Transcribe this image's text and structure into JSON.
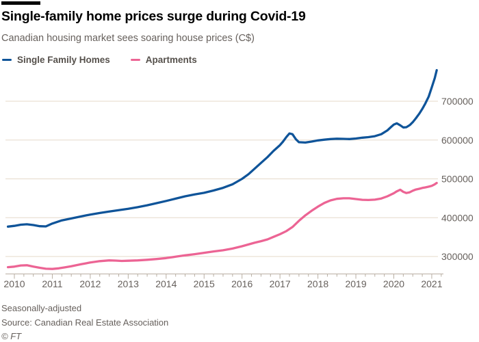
{
  "header": {
    "title": "Single-family home prices surge during Covid-19",
    "subtitle": "Canadian housing market sees soaring house prices (C$)"
  },
  "legend": {
    "items": [
      {
        "label": "Single Family Homes",
        "color": "#0f5499"
      },
      {
        "label": "Apartments",
        "color": "#ec6494"
      }
    ]
  },
  "footer": {
    "note": "Seasonally-adjusted",
    "source": "Source: Canadian Real Estate Association",
    "credit": "© FT"
  },
  "colors": {
    "gridline": "#e5d9ca",
    "axis": "#b8aea2",
    "tick_label": "#66605c"
  },
  "chart_data": {
    "type": "line",
    "title": "Single-family home prices surge during Covid-19",
    "subtitle": "Canadian housing market sees soaring house prices (C$)",
    "xlabel": "",
    "ylabel": "",
    "x_ticks": [
      2010,
      2011,
      2012,
      2013,
      2014,
      2015,
      2016,
      2017,
      2018,
      2019,
      2020,
      2021
    ],
    "y_ticks": [
      300000,
      400000,
      500000,
      600000,
      700000
    ],
    "xlim": [
      2009.77,
      2021.3
    ],
    "ylim": [
      256000,
      784000
    ],
    "grid": "horizontal",
    "y_axis_side": "right",
    "legend_position": "top-left",
    "minor_x_tick_interval": 0.25,
    "series": [
      {
        "name": "Single Family Homes",
        "color": "#0f5499",
        "points": [
          [
            2009.83,
            377000
          ],
          [
            2010.0,
            379000
          ],
          [
            2010.17,
            382000
          ],
          [
            2010.33,
            383000
          ],
          [
            2010.5,
            381000
          ],
          [
            2010.67,
            378000
          ],
          [
            2010.83,
            377500
          ],
          [
            2011.0,
            385000
          ],
          [
            2011.25,
            393000
          ],
          [
            2011.5,
            398000
          ],
          [
            2011.75,
            403000
          ],
          [
            2012.0,
            408000
          ],
          [
            2012.25,
            412000
          ],
          [
            2012.5,
            416000
          ],
          [
            2012.75,
            419500
          ],
          [
            2013.0,
            423000
          ],
          [
            2013.25,
            427000
          ],
          [
            2013.5,
            432000
          ],
          [
            2013.75,
            437500
          ],
          [
            2014.0,
            443000
          ],
          [
            2014.25,
            449000
          ],
          [
            2014.5,
            455000
          ],
          [
            2014.75,
            460000
          ],
          [
            2015.0,
            464000
          ],
          [
            2015.25,
            470000
          ],
          [
            2015.5,
            477000
          ],
          [
            2015.75,
            486000
          ],
          [
            2016.0,
            500000
          ],
          [
            2016.17,
            512000
          ],
          [
            2016.33,
            526000
          ],
          [
            2016.5,
            541000
          ],
          [
            2016.67,
            556000
          ],
          [
            2016.83,
            572000
          ],
          [
            2017.0,
            587000
          ],
          [
            2017.08,
            596000
          ],
          [
            2017.17,
            608000
          ],
          [
            2017.25,
            617000
          ],
          [
            2017.33,
            615000
          ],
          [
            2017.42,
            602000
          ],
          [
            2017.5,
            594500
          ],
          [
            2017.67,
            593500
          ],
          [
            2017.83,
            596000
          ],
          [
            2018.0,
            599000
          ],
          [
            2018.17,
            601000
          ],
          [
            2018.33,
            602500
          ],
          [
            2018.5,
            603500
          ],
          [
            2018.67,
            603000
          ],
          [
            2018.83,
            602500
          ],
          [
            2019.0,
            604000
          ],
          [
            2019.17,
            606000
          ],
          [
            2019.33,
            607500
          ],
          [
            2019.5,
            610000
          ],
          [
            2019.67,
            615000
          ],
          [
            2019.83,
            625000
          ],
          [
            2019.92,
            633000
          ],
          [
            2020.0,
            640000
          ],
          [
            2020.08,
            643000
          ],
          [
            2020.17,
            638000
          ],
          [
            2020.25,
            632500
          ],
          [
            2020.33,
            633000
          ],
          [
            2020.42,
            638500
          ],
          [
            2020.5,
            646000
          ],
          [
            2020.58,
            656000
          ],
          [
            2020.67,
            668000
          ],
          [
            2020.75,
            680000
          ],
          [
            2020.83,
            694000
          ],
          [
            2020.92,
            712000
          ],
          [
            2021.0,
            736000
          ],
          [
            2021.08,
            760000
          ],
          [
            2021.13,
            780000
          ]
        ]
      },
      {
        "name": "Apartments",
        "color": "#ec6494",
        "points": [
          [
            2009.83,
            272500
          ],
          [
            2010.0,
            274000
          ],
          [
            2010.17,
            277000
          ],
          [
            2010.33,
            277500
          ],
          [
            2010.5,
            274000
          ],
          [
            2010.67,
            271000
          ],
          [
            2010.83,
            268500
          ],
          [
            2011.0,
            268000
          ],
          [
            2011.17,
            269500
          ],
          [
            2011.33,
            272000
          ],
          [
            2011.5,
            275000
          ],
          [
            2011.75,
            280000
          ],
          [
            2012.0,
            284500
          ],
          [
            2012.25,
            288000
          ],
          [
            2012.5,
            290000
          ],
          [
            2012.67,
            289500
          ],
          [
            2012.83,
            288500
          ],
          [
            2013.0,
            289000
          ],
          [
            2013.25,
            290000
          ],
          [
            2013.5,
            291500
          ],
          [
            2013.75,
            293500
          ],
          [
            2014.0,
            296000
          ],
          [
            2014.25,
            299500
          ],
          [
            2014.5,
            303000
          ],
          [
            2014.75,
            306000
          ],
          [
            2015.0,
            309500
          ],
          [
            2015.25,
            313000
          ],
          [
            2015.5,
            316000
          ],
          [
            2015.75,
            320500
          ],
          [
            2016.0,
            326500
          ],
          [
            2016.17,
            331000
          ],
          [
            2016.33,
            335500
          ],
          [
            2016.5,
            339500
          ],
          [
            2016.67,
            344000
          ],
          [
            2016.83,
            350500
          ],
          [
            2017.0,
            357500
          ],
          [
            2017.17,
            365500
          ],
          [
            2017.33,
            376000
          ],
          [
            2017.5,
            392000
          ],
          [
            2017.67,
            406000
          ],
          [
            2017.83,
            417500
          ],
          [
            2018.0,
            428500
          ],
          [
            2018.17,
            438000
          ],
          [
            2018.33,
            444500
          ],
          [
            2018.5,
            448500
          ],
          [
            2018.67,
            450000
          ],
          [
            2018.83,
            450000
          ],
          [
            2019.0,
            448000
          ],
          [
            2019.17,
            446000
          ],
          [
            2019.33,
            445500
          ],
          [
            2019.5,
            446500
          ],
          [
            2019.67,
            449500
          ],
          [
            2019.83,
            455000
          ],
          [
            2020.0,
            463000
          ],
          [
            2020.08,
            468000
          ],
          [
            2020.17,
            472000
          ],
          [
            2020.25,
            466500
          ],
          [
            2020.33,
            463500
          ],
          [
            2020.42,
            465500
          ],
          [
            2020.5,
            469500
          ],
          [
            2020.58,
            472500
          ],
          [
            2020.67,
            474500
          ],
          [
            2020.75,
            476500
          ],
          [
            2020.83,
            478000
          ],
          [
            2020.92,
            480000
          ],
          [
            2021.0,
            482000
          ],
          [
            2021.08,
            486000
          ],
          [
            2021.13,
            489500
          ]
        ]
      }
    ]
  }
}
